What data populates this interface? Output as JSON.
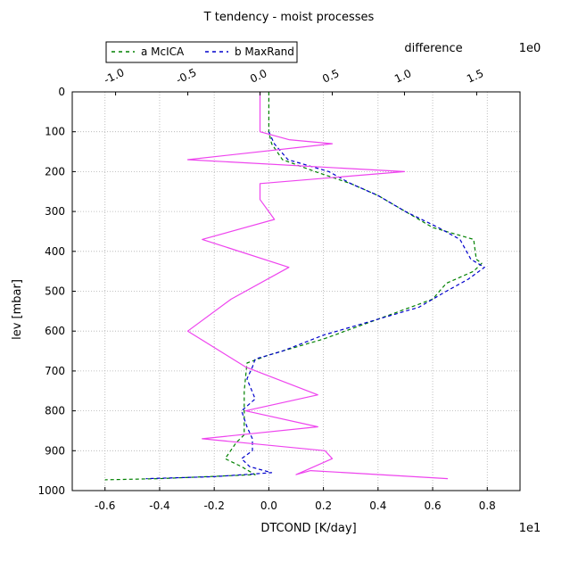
{
  "chart_data": {
    "type": "line",
    "title": "T tendency - moist processes",
    "xlabel": "DTCOND [K/day]",
    "ylabel": "lev [mbar]",
    "x_multiplier": "1e1",
    "xlim": [
      -0.72,
      0.92
    ],
    "ylim": [
      1000,
      0
    ],
    "y_inverted": true,
    "xticks": [
      -0.6,
      -0.4,
      -0.2,
      0.0,
      0.2,
      0.4,
      0.6,
      0.8
    ],
    "xtick_labels": [
      "-0.6",
      "-0.4",
      "-0.2",
      "0.0",
      "0.2",
      "0.4",
      "0.6",
      "0.8"
    ],
    "yticks": [
      0,
      100,
      200,
      300,
      400,
      500,
      600,
      700,
      800,
      900,
      1000
    ],
    "ytick_labels": [
      "0",
      "100",
      "200",
      "300",
      "400",
      "500",
      "600",
      "700",
      "800",
      "900",
      "1000"
    ],
    "grid": true,
    "legend_position": "top-left",
    "series": [
      {
        "name": "a McICA",
        "color": "#008000",
        "style": "dashed",
        "axis": "bottom",
        "points": [
          [
            0.0,
            0
          ],
          [
            0.0,
            100
          ],
          [
            0.01,
            130
          ],
          [
            0.05,
            170
          ],
          [
            0.17,
            200
          ],
          [
            0.3,
            230
          ],
          [
            0.4,
            260
          ],
          [
            0.5,
            300
          ],
          [
            0.6,
            340
          ],
          [
            0.75,
            370
          ],
          [
            0.76,
            420
          ],
          [
            0.78,
            430
          ],
          [
            0.75,
            450
          ],
          [
            0.65,
            480
          ],
          [
            0.6,
            520
          ],
          [
            0.4,
            570
          ],
          [
            0.2,
            620
          ],
          [
            0.0,
            660
          ],
          [
            -0.08,
            680
          ],
          [
            -0.09,
            750
          ],
          [
            -0.09,
            800
          ],
          [
            -0.09,
            860
          ],
          [
            -0.12,
            880
          ],
          [
            -0.16,
            920
          ],
          [
            -0.1,
            940
          ],
          [
            -0.05,
            960
          ],
          [
            -0.4,
            970
          ],
          [
            -0.6,
            973
          ]
        ]
      },
      {
        "name": "b MaxRand",
        "color": "#0000cc",
        "style": "dashed",
        "axis": "bottom",
        "points": [
          [
            0.0,
            100
          ],
          [
            0.02,
            130
          ],
          [
            0.07,
            170
          ],
          [
            0.22,
            200
          ],
          [
            0.3,
            230
          ],
          [
            0.4,
            260
          ],
          [
            0.5,
            300
          ],
          [
            0.62,
            340
          ],
          [
            0.7,
            370
          ],
          [
            0.74,
            420
          ],
          [
            0.79,
            440
          ],
          [
            0.73,
            470
          ],
          [
            0.65,
            500
          ],
          [
            0.55,
            540
          ],
          [
            0.35,
            580
          ],
          [
            0.2,
            610
          ],
          [
            0.05,
            650
          ],
          [
            -0.05,
            670
          ],
          [
            -0.06,
            690
          ],
          [
            -0.08,
            720
          ],
          [
            -0.05,
            770
          ],
          [
            -0.1,
            800
          ],
          [
            -0.08,
            840
          ],
          [
            -0.06,
            870
          ],
          [
            -0.06,
            900
          ],
          [
            -0.1,
            920
          ],
          [
            -0.07,
            940
          ],
          [
            0.01,
            955
          ],
          [
            -0.2,
            965
          ],
          [
            -0.45,
            970
          ]
        ]
      },
      {
        "name": "difference",
        "color": "#ee44ee",
        "style": "solid",
        "axis": "top",
        "points": [
          [
            0.0,
            0
          ],
          [
            0.0,
            100
          ],
          [
            0.2,
            120
          ],
          [
            0.5,
            130
          ],
          [
            -0.5,
            170
          ],
          [
            1.0,
            200
          ],
          [
            0.0,
            230
          ],
          [
            0.0,
            270
          ],
          [
            0.1,
            320
          ],
          [
            -0.4,
            370
          ],
          [
            0.2,
            440
          ],
          [
            -0.2,
            520
          ],
          [
            -0.5,
            600
          ],
          [
            -0.1,
            690
          ],
          [
            0.4,
            760
          ],
          [
            -0.1,
            800
          ],
          [
            0.4,
            840
          ],
          [
            -0.4,
            870
          ],
          [
            0.45,
            900
          ],
          [
            0.5,
            920
          ],
          [
            0.25,
            960
          ],
          [
            0.35,
            950
          ],
          [
            1.3,
            970
          ]
        ]
      }
    ],
    "top_axis": {
      "label": "difference",
      "multiplier": "1e0",
      "xlim": [
        -1.3,
        1.8
      ],
      "ticks": [
        -1.0,
        -0.5,
        0.0,
        0.5,
        1.0,
        1.5
      ],
      "tick_labels": [
        "-1.0",
        "-0.5",
        "0.0",
        "0.5",
        "1.0",
        "1.5"
      ],
      "tick_color": "#ee44ee"
    }
  }
}
